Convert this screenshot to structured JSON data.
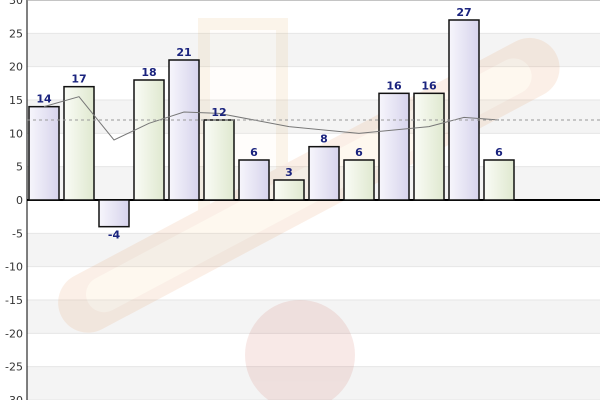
{
  "chart_data": {
    "type": "bar",
    "title": "",
    "xlabel": "",
    "ylabel": "",
    "ylim": [
      -30,
      30
    ],
    "yticks": [
      -30,
      -25,
      -20,
      -15,
      -10,
      -5,
      0,
      5,
      10,
      15,
      20,
      25,
      30
    ],
    "values": [
      14,
      17,
      -4,
      18,
      21,
      12,
      6,
      3,
      8,
      6,
      16,
      16,
      27,
      6
    ],
    "trend_line": [
      14,
      15.5,
      9,
      11.5,
      13.2,
      13,
      null,
      11,
      null,
      10,
      10.5,
      11,
      12.4,
      12
    ],
    "average": 12,
    "grid": true,
    "bar_colors": [
      "#e8e6f3",
      "#edf2e4"
    ],
    "colors": {
      "bar_outline": "#111111",
      "label": "#1a237e",
      "trend": "#777777",
      "band": "#f4f4f4",
      "grid": "#e6e6e6",
      "axis": "#000000"
    }
  }
}
